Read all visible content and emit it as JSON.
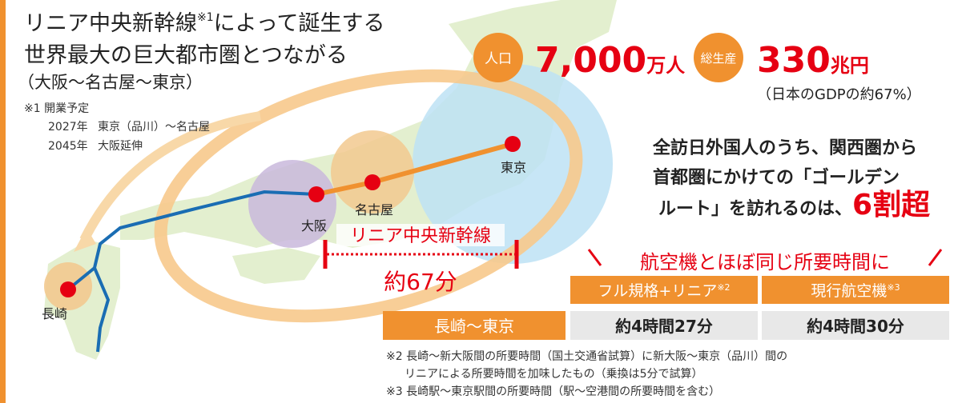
{
  "headline": {
    "line1": "リニア中央新幹線",
    "sup": "※1",
    "line1b": "によって誕生する",
    "line2": "世界最大の巨大都市圏とつながる",
    "line3": "（大阪〜名古屋〜東京）"
  },
  "note1": {
    "title": "※1 開業予定",
    "rows": [
      [
        "2027年",
        "東京（品川）〜名古屋"
      ],
      [
        "2045年",
        "大阪延伸"
      ]
    ]
  },
  "stats": [
    {
      "label": "人口",
      "value": "7,000",
      "unit": "万人"
    },
    {
      "label": "総生産",
      "value": "330",
      "unit": "兆円"
    }
  ],
  "gdp_note": "（日本のGDPの約67%）",
  "cities": [
    "東京",
    "名古屋",
    "大阪",
    "長崎"
  ],
  "line_name": "リニア中央新幹線",
  "duration": "約67分",
  "visitor_text": {
    "line1": "全訪日外国人のうち、関西圏から",
    "line2": "首都圏にかけての「ゴールデン",
    "line3": "ルート」を訪れるのは、",
    "highlight": "6割超"
  },
  "comparison": {
    "title": "航空機とほぼ同じ所要時間に",
    "headers": [
      {
        "text": "フル規格+リニア",
        "note": "※2"
      },
      {
        "text": "現行航空機",
        "note": "※3"
      }
    ],
    "row_label": "長崎〜東京",
    "values": [
      "約4時間27分",
      "約4時間30分"
    ]
  },
  "footnotes": [
    "※2 長崎〜新大阪間の所要時間（国土交通省試算）に新大阪〜東京（品川）間の",
    "リニアによる所要時間を加味したもの（乗換は5分で試算）",
    "※3 長崎駅〜東京駅間の所要時間（駅〜空港間の所要時間を含む）"
  ]
}
